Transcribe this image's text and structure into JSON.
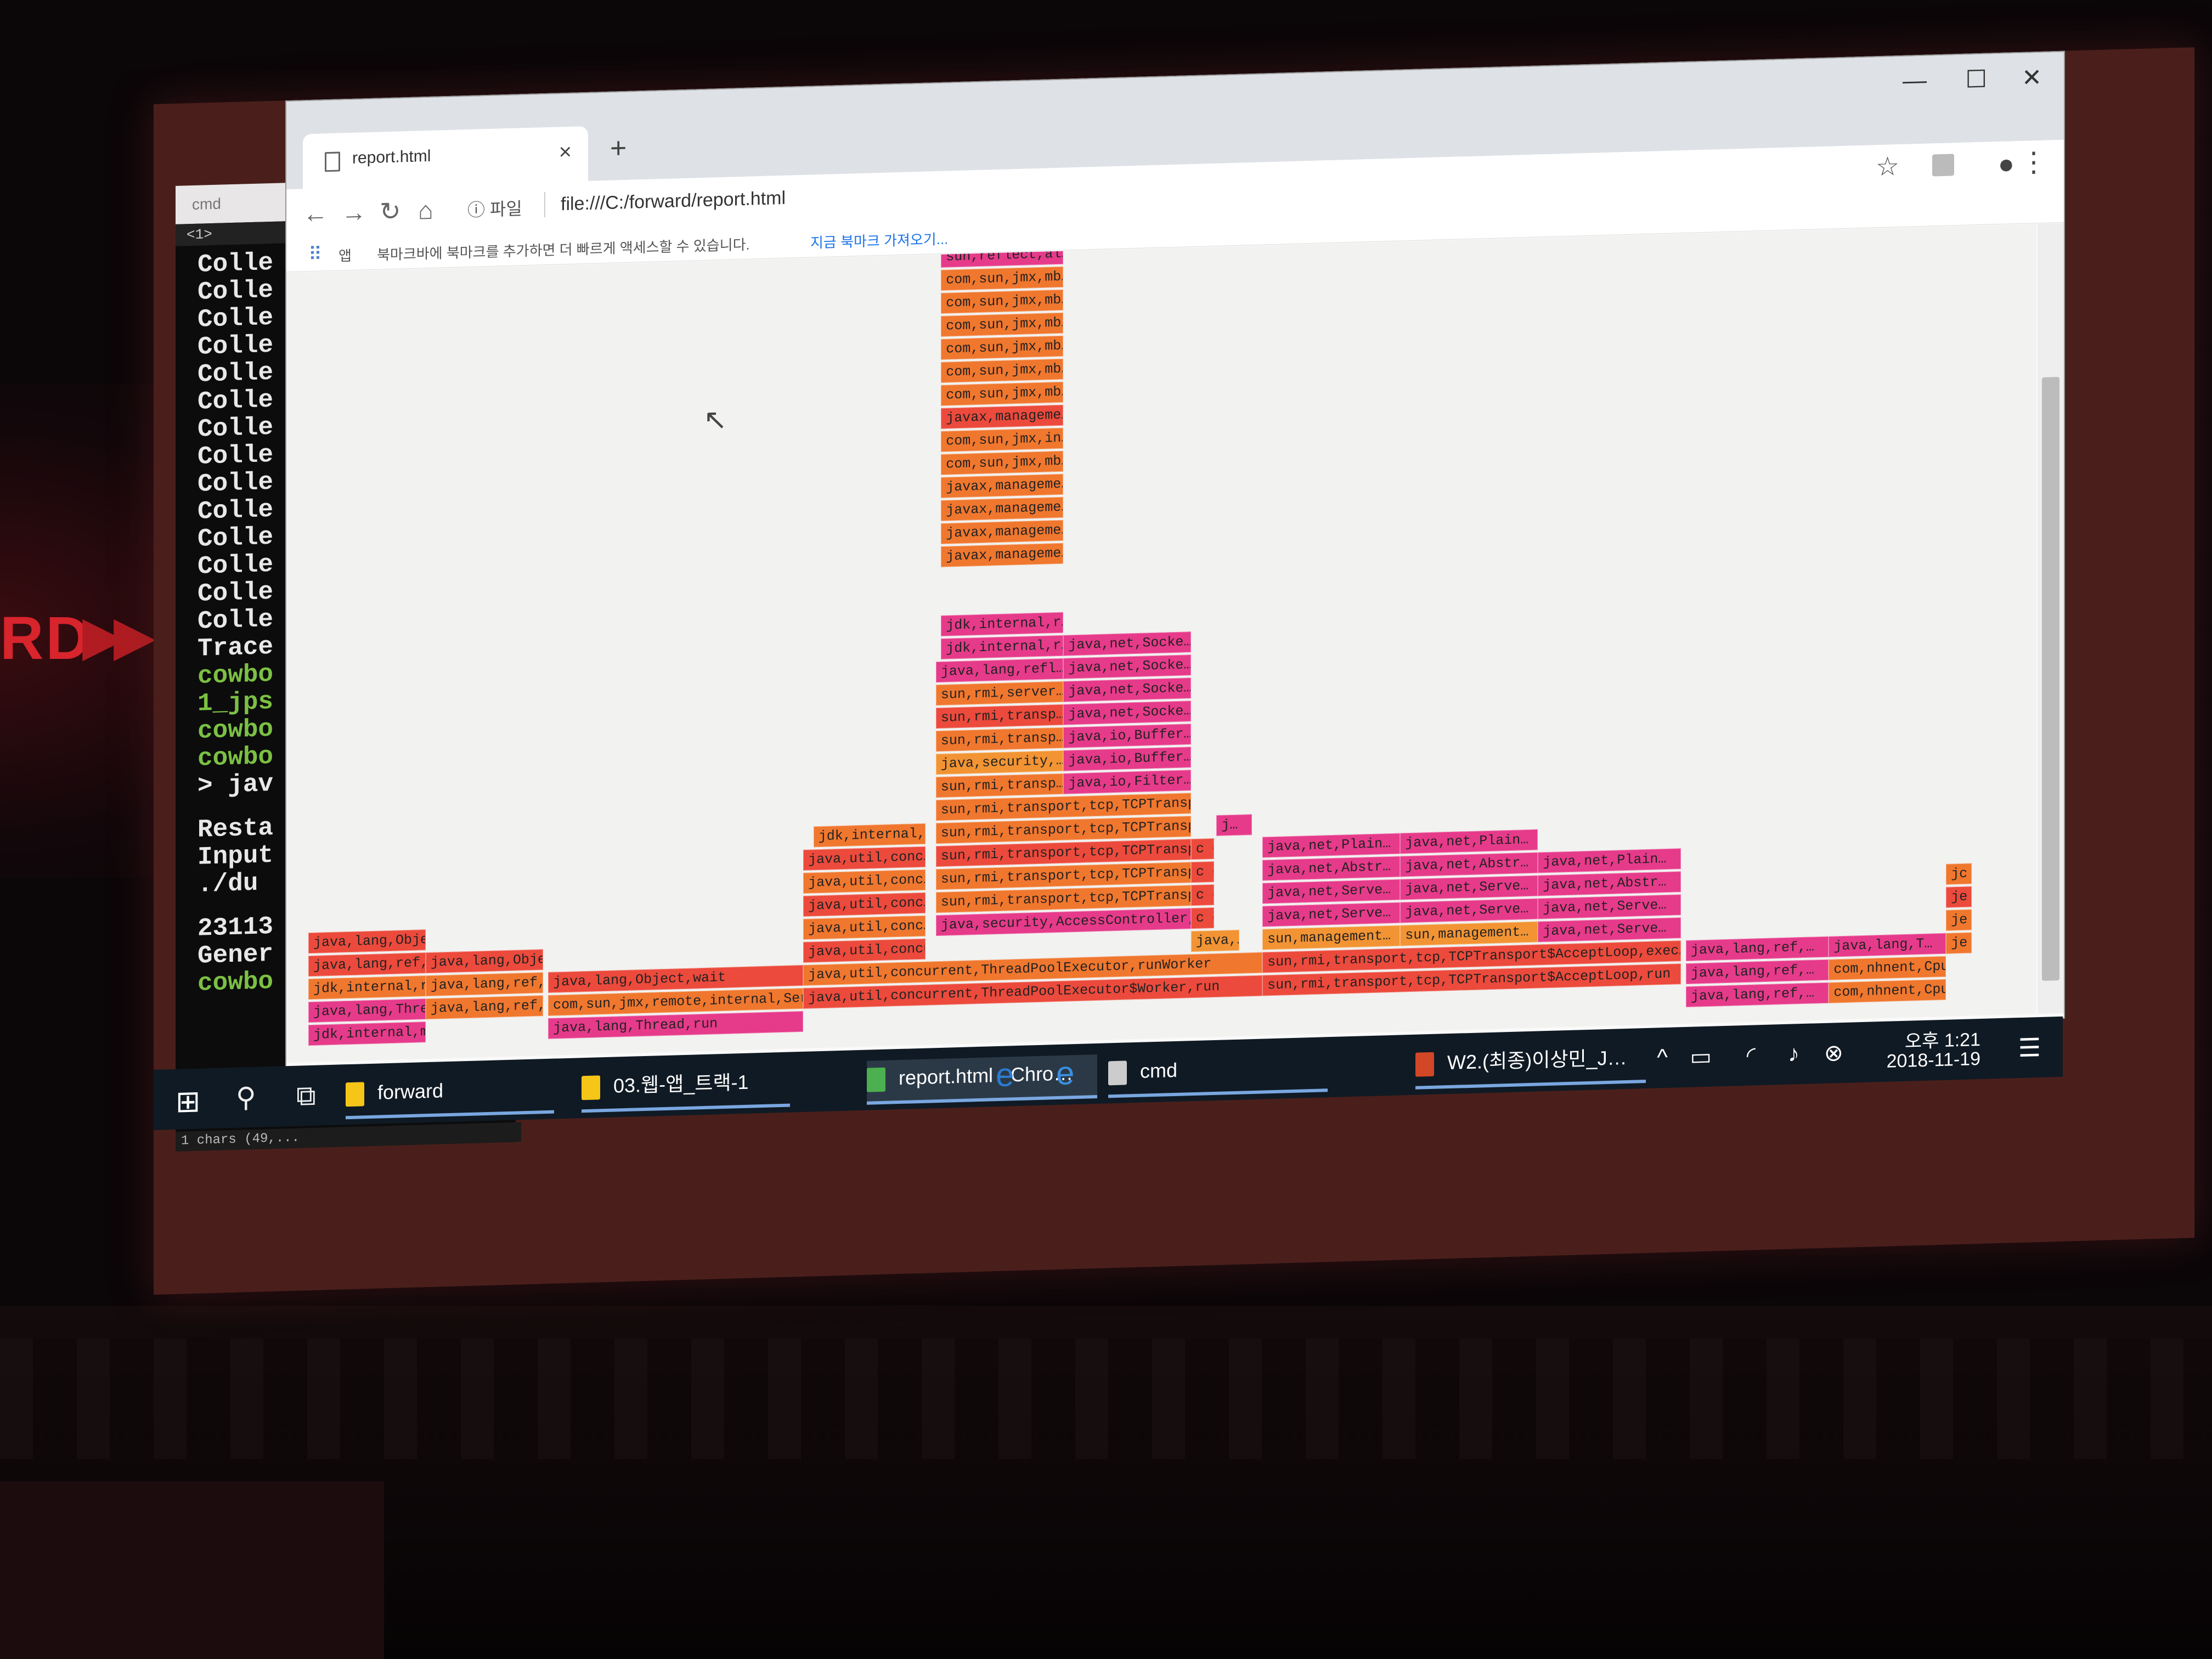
{
  "stage": {
    "brand_text": "RD",
    "arrows": "▶▶"
  },
  "cmd": {
    "title": "cmd",
    "tabs": "<1>",
    "lines": [
      "Colle",
      "Colle",
      "Colle",
      "Colle",
      "Colle",
      "Colle",
      "Colle",
      "Colle",
      "Colle",
      "Colle",
      "Colle",
      "Colle",
      "Colle",
      "Colle",
      "Trace",
      "cowbo",
      "1_jps",
      "cowbo",
      "cowbo",
      "> jav",
      "Resta",
      "Input",
      "./du",
      "23113",
      "Gener",
      "cowbo"
    ],
    "status": "1 chars (49,..."
  },
  "browser": {
    "tab_title": "report.html",
    "new_tab": "+",
    "url_info": "ⓘ 파일",
    "url": "file:///C:/forward/report.html",
    "apps_label": "앱",
    "bookmark_hint": "북마크바에 북마크를 추가하면 더 빠르게 액세스할 수 있습니다.",
    "bookmark_link": "지금 북마크 가져오기..."
  },
  "flamegraph_colors": {
    "red": "#ec4a3c",
    "orange": "#f0772e",
    "pink": "#e63a8a",
    "magenta": "#e0358f",
    "amber": "#f29433"
  },
  "frames": [
    {
      "t": "java,lang,Thre…",
      "c": "pink"
    },
    {
      "t": "jdk,internal,m…",
      "c": "pink"
    },
    {
      "t": "java,lang,ref,…",
      "c": "orange"
    },
    {
      "t": "java,lang,Obje…",
      "c": "red"
    },
    {
      "t": "java,lang,ref,…",
      "c": "red"
    },
    {
      "t": "java,lang,ref,…",
      "c": "orange"
    },
    {
      "t": "java,lang,Obje…",
      "c": "red"
    },
    {
      "t": "jdk,internal,r…",
      "c": "orange"
    },
    {
      "t": "java,lang,Thread,run",
      "c": "pink"
    },
    {
      "t": "com,sun,jmx,remote,internal,Serv…",
      "c": "orange"
    },
    {
      "t": "java,lang,Object,wait",
      "c": "red"
    },
    {
      "t": "java,util,concurrent,ThreadPoolExecutor$Worker,run",
      "c": "red"
    },
    {
      "t": "java,util,concurrent,ThreadPoolExecutor,runWorker",
      "c": "orange"
    },
    {
      "t": "java,util,concurre…",
      "c": "red"
    },
    {
      "t": "java,util,conc…",
      "c": "orange"
    },
    {
      "t": "java,util,conc…",
      "c": "red"
    },
    {
      "t": "java,util,conc…",
      "c": "orange"
    },
    {
      "t": "java,util,conc…",
      "c": "red"
    },
    {
      "t": "jdk,internal,m…",
      "c": "orange"
    },
    {
      "t": "java,security,AccessController,d…",
      "c": "pink"
    },
    {
      "t": "sun,rmi,transport,tcp,TCPTranspo…",
      "c": "orange"
    },
    {
      "t": "sun,rmi,transport,tcp,TCPTranspo…",
      "c": "orange"
    },
    {
      "t": "sun,rmi,transport,tcp,TCPTranspo…",
      "c": "red"
    },
    {
      "t": "sun,rmi,transport,tcp,TCPTranspo…",
      "c": "orange"
    },
    {
      "t": "sun,rmi,transport,tcp,TCPTranspo…",
      "c": "orange"
    },
    {
      "t": "sun,rmi,transp…",
      "c": "orange"
    },
    {
      "t": "java,security,…",
      "c": "amber"
    },
    {
      "t": "sun,rmi,transp…",
      "c": "orange"
    },
    {
      "t": "sun,rmi,transp…",
      "c": "red"
    },
    {
      "t": "sun,rmi,server…",
      "c": "orange"
    },
    {
      "t": "java,lang,refl…",
      "c": "pink"
    },
    {
      "t": "jdk,internal,r…",
      "c": "pink"
    },
    {
      "t": "jdk,internal,r…",
      "c": "pink"
    },
    {
      "t": "javax,manageme…",
      "c": "orange"
    },
    {
      "t": "javax,manageme…",
      "c": "orange"
    },
    {
      "t": "javax,manageme…",
      "c": "orange"
    },
    {
      "t": "javax,manageme…",
      "c": "orange"
    },
    {
      "t": "com,sun,jmx,mb…",
      "c": "orange"
    },
    {
      "t": "com,sun,jmx,in…",
      "c": "orange"
    },
    {
      "t": "javax,manageme…",
      "c": "red"
    },
    {
      "t": "com,sun,jmx,mb…",
      "c": "orange"
    },
    {
      "t": "com,sun,jmx,mb…",
      "c": "orange"
    },
    {
      "t": "com,sun,jmx,mb…",
      "c": "orange"
    },
    {
      "t": "com,sun,jmx,mb…",
      "c": "orange"
    },
    {
      "t": "com,sun,jmx,mb…",
      "c": "orange"
    },
    {
      "t": "com,sun,jmx,mb…",
      "c": "orange"
    },
    {
      "t": "sun,reflect,al…",
      "c": "pink"
    },
    {
      "t": "java,lang,refl…",
      "c": "pink"
    },
    {
      "t": "jdk,internal,r…",
      "c": "pink"
    },
    {
      "t": "jdk,internal,r…",
      "c": "pink"
    },
    {
      "t": "java,io,Filter…",
      "c": "pink"
    },
    {
      "t": "java,io,Buffer…",
      "c": "pink"
    },
    {
      "t": "java,io,Buffer…",
      "c": "pink"
    },
    {
      "t": "java,net,Socke…",
      "c": "pink"
    },
    {
      "t": "java,net,Socke…",
      "c": "pink"
    },
    {
      "t": "java,net,Socke…",
      "c": "pink"
    },
    {
      "t": "java,net,Socke…",
      "c": "pink"
    },
    {
      "t": "c co…",
      "c": "red"
    },
    {
      "t": "c co…",
      "c": "red"
    },
    {
      "t": "c co…",
      "c": "red"
    },
    {
      "t": "c co…",
      "c": "red"
    },
    {
      "t": "java,…",
      "c": "amber"
    },
    {
      "t": "j…",
      "c": "pink"
    },
    {
      "t": "sun,rmi,transport,tcp,TCPTransport$AcceptLoop,run",
      "c": "red"
    },
    {
      "t": "sun,rmi,transport,tcp,TCPTransport$AcceptLoop,exec…",
      "c": "red"
    },
    {
      "t": "sun,management…",
      "c": "amber"
    },
    {
      "t": "java,net,Serve…",
      "c": "pink"
    },
    {
      "t": "java,net,Serve…",
      "c": "pink"
    },
    {
      "t": "java,net,Abstr…",
      "c": "pink"
    },
    {
      "t": "java,net,Plain…",
      "c": "pink"
    },
    {
      "t": "sun,management…",
      "c": "amber"
    },
    {
      "t": "java,net,Serve…",
      "c": "pink"
    },
    {
      "t": "java,net,Serve…",
      "c": "pink"
    },
    {
      "t": "java,net,Abstr…",
      "c": "pink"
    },
    {
      "t": "java,net,Plain…",
      "c": "pink"
    },
    {
      "t": "java,net,Serve…",
      "c": "pink"
    },
    {
      "t": "java,net,Serve…",
      "c": "pink"
    },
    {
      "t": "java,net,Abstr…",
      "c": "pink"
    },
    {
      "t": "java,net,Plain…",
      "c": "pink"
    },
    {
      "t": "java,lang,ref,…",
      "c": "pink"
    },
    {
      "t": "java,lang,ref,…",
      "c": "pink"
    },
    {
      "t": "java,lang,ref,…",
      "c": "pink"
    },
    {
      "t": "com,nhnent,Cpu…",
      "c": "orange"
    },
    {
      "t": "com,nhnent,Cpu…",
      "c": "orange"
    },
    {
      "t": "java,lang,T…",
      "c": "pink"
    },
    {
      "t": "je",
      "c": "orange"
    },
    {
      "t": "je",
      "c": "orange"
    },
    {
      "t": "je",
      "c": "red"
    },
    {
      "t": "jc",
      "c": "orange"
    }
  ],
  "taskbar": {
    "items": [
      {
        "label": "forward",
        "color": "#f5c518"
      },
      {
        "label": "03.웹-앱_트랙-1",
        "color": "#f5c518"
      },
      {
        "label": "report.html - Chro…",
        "color": "#4caf50"
      },
      {
        "label": "cmd",
        "color": "#cccccc"
      },
      {
        "label": "W2.(최종)이상민_J…",
        "color": "#d24726"
      }
    ],
    "clock_time": "오후 1:21",
    "clock_date": "2018-11-19"
  }
}
